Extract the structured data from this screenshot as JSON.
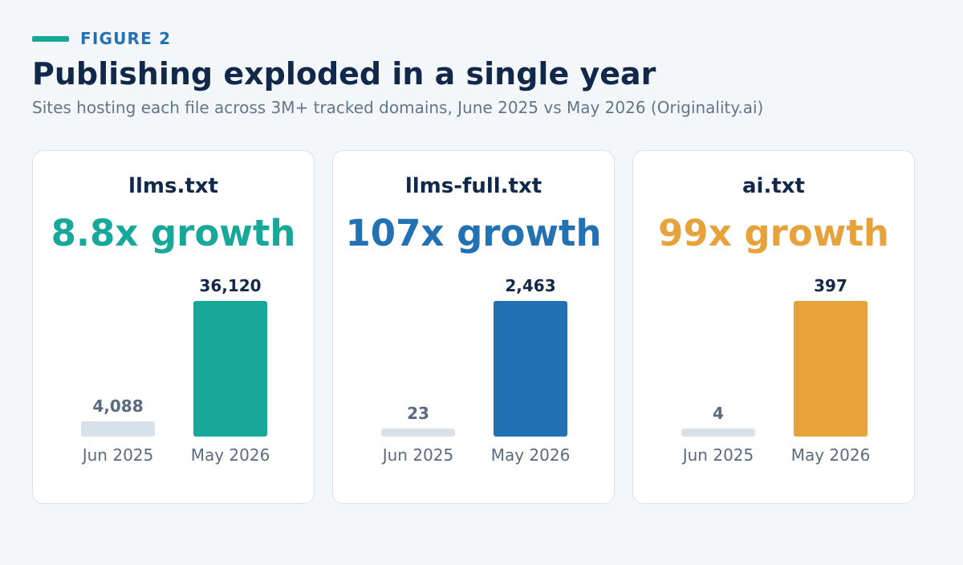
{
  "header": {
    "kicker": "FIGURE 2",
    "title": "Publishing exploded in a single year",
    "subtitle": "Sites hosting each file across 3M+ tracked domains, June 2025 vs May 2026 (Originality.ai)"
  },
  "colors": {
    "kicker_bar": "#17a89a",
    "kicker_text": "#2272b3",
    "baseline_bar": "#d8e1ea",
    "background": "#f4f7fa"
  },
  "chart_data": [
    {
      "type": "bar",
      "title": "llms.txt",
      "growth_label": "8.8x growth",
      "accent": "#17a89a",
      "categories": [
        "Jun 2025",
        "May 2026"
      ],
      "values": [
        4088,
        36120
      ],
      "value_labels": [
        "4,088",
        "36,120"
      ]
    },
    {
      "type": "bar",
      "title": "llms-full.txt",
      "growth_label": "107x growth",
      "accent": "#2272b3",
      "categories": [
        "Jun 2025",
        "May 2026"
      ],
      "values": [
        23,
        2463
      ],
      "value_labels": [
        "23",
        "2,463"
      ]
    },
    {
      "type": "bar",
      "title": "ai.txt",
      "growth_label": "99x growth",
      "accent": "#e8a23c",
      "categories": [
        "Jun 2025",
        "May 2026"
      ],
      "values": [
        4,
        397
      ],
      "value_labels": [
        "4",
        "397"
      ]
    }
  ]
}
